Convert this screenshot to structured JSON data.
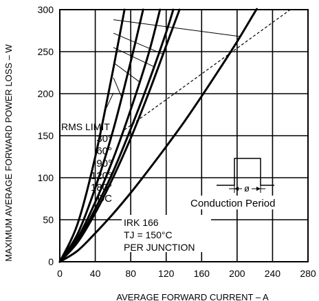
{
  "chart_data": {
    "type": "line",
    "xlabel": "AVERAGE FORWARD CURRENT – A",
    "ylabel": "MAXIMUM AVERAGE FORWARD POWER LOSS – W",
    "xlim": [
      0,
      280
    ],
    "ylim": [
      0,
      300
    ],
    "x_ticks": [
      0,
      40,
      80,
      120,
      160,
      200,
      240,
      280
    ],
    "y_ticks": [
      0,
      50,
      100,
      150,
      200,
      250,
      300
    ],
    "grid": true,
    "series": [
      {
        "name": "DC",
        "points": [
          [
            0,
            0
          ],
          [
            20,
            13
          ],
          [
            40,
            34
          ],
          [
            60,
            57
          ],
          [
            80,
            82
          ],
          [
            100,
            109
          ],
          [
            120,
            137
          ],
          [
            140,
            166
          ],
          [
            160,
            197
          ],
          [
            180,
            229
          ],
          [
            200,
            262
          ],
          [
            220,
            297
          ],
          [
            222,
            300
          ]
        ]
      },
      {
        "name": "180°",
        "points": [
          [
            0,
            0
          ],
          [
            20,
            23
          ],
          [
            40,
            58
          ],
          [
            60,
            100
          ],
          [
            80,
            147
          ],
          [
            100,
            200
          ],
          [
            120,
            257
          ],
          [
            135,
            300
          ]
        ]
      },
      {
        "name": "120°",
        "points": [
          [
            0,
            0
          ],
          [
            20,
            25
          ],
          [
            40,
            63
          ],
          [
            60,
            107
          ],
          [
            80,
            158
          ],
          [
            100,
            213
          ],
          [
            120,
            273
          ],
          [
            128,
            300
          ]
        ]
      },
      {
        "name": "90°",
        "points": [
          [
            0,
            0
          ],
          [
            20,
            28
          ],
          [
            40,
            71
          ],
          [
            60,
            122
          ],
          [
            80,
            181
          ],
          [
            100,
            247
          ],
          [
            113,
            300
          ]
        ]
      },
      {
        "name": "60°",
        "points": [
          [
            0,
            0
          ],
          [
            20,
            33
          ],
          [
            40,
            88
          ],
          [
            60,
            156
          ],
          [
            80,
            238
          ],
          [
            94,
            300
          ]
        ]
      },
      {
        "name": "30°",
        "points": [
          [
            0,
            0
          ],
          [
            20,
            45
          ],
          [
            40,
            125
          ],
          [
            60,
            228
          ],
          [
            73,
            300
          ]
        ]
      }
    ],
    "rms_limit": {
      "label": "RMS LIMIT",
      "points": [
        [
          73,
          157
        ],
        [
          260,
          300
        ]
      ]
    },
    "annotations": {
      "device": "IRK 166",
      "temperature": "TJ = 150°C",
      "junction": "PER JUNCTION",
      "conduction_label": "Conduction Period",
      "phi_symbol": "ø"
    },
    "legend_labels": [
      "DC",
      "180°",
      "120°",
      "90°",
      "60°",
      "30°"
    ]
  }
}
